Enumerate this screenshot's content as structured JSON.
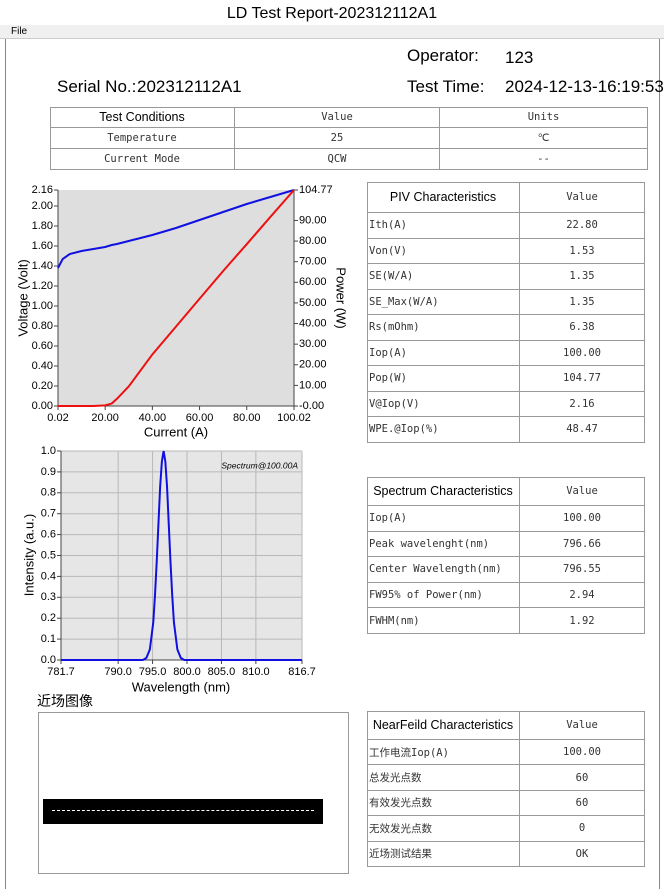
{
  "window": {
    "title": "LD Test Report-202312112A1",
    "menu": [
      "File"
    ]
  },
  "header": {
    "operator_label": "Operator:",
    "operator": "123",
    "serial_label": "Serial No.:",
    "serial": "202312112A1",
    "time_label": "Test Time:",
    "time": "2024-12-13-16:19:53"
  },
  "conditions": {
    "header": [
      "Test Conditions",
      "Value",
      "Units"
    ],
    "rows": [
      [
        "Temperature",
        "25",
        "℃"
      ],
      [
        "Current Mode",
        "QCW",
        "--"
      ]
    ]
  },
  "chart_data": [
    {
      "type": "line",
      "xlabel": "Current (A)",
      "ylabel": "Voltage (Volt)",
      "y2label": "Power (W)",
      "grid": false,
      "xlim": [
        0.02,
        100.02
      ],
      "xticks": [
        0.02,
        {
          "value": 20,
          "label": "20.00"
        },
        {
          "value": 40,
          "label": "40.00"
        },
        {
          "value": 60,
          "label": "60.00"
        },
        {
          "value": 80,
          "label": "80.00"
        },
        100.02
      ],
      "ylim": [
        0,
        2.16
      ],
      "yticks": [
        {
          "value": 0,
          "label": "0.00"
        },
        {
          "value": 0.2,
          "label": "0.20"
        },
        {
          "value": 0.4,
          "label": "0.40"
        },
        {
          "value": 0.6,
          "label": "0.60"
        },
        {
          "value": 0.8,
          "label": "0.80"
        },
        {
          "value": 1,
          "label": "1.00"
        },
        {
          "value": 1.2,
          "label": "1.20"
        },
        {
          "value": 1.4,
          "label": "1.40"
        },
        {
          "value": 1.6,
          "label": "1.60"
        },
        {
          "value": 1.8,
          "label": "1.80"
        },
        {
          "value": 2,
          "label": "2.00"
        },
        2.16
      ],
      "y2lim": [
        0,
        104.77
      ],
      "y2ticks": [
        {
          "value": 0,
          "label": "-0.00"
        },
        {
          "value": 10,
          "label": "10.00"
        },
        {
          "value": 20,
          "label": "20.00"
        },
        {
          "value": 30,
          "label": "30.00"
        },
        {
          "value": 40,
          "label": "40.00"
        },
        {
          "value": 50,
          "label": "50.00"
        },
        {
          "value": 60,
          "label": "60.00"
        },
        {
          "value": 70,
          "label": "70.00"
        },
        {
          "value": 80,
          "label": "80.00"
        },
        {
          "value": 90,
          "label": "90.00"
        },
        104.77
      ],
      "x": [
        0.02,
        2,
        5,
        10,
        15,
        20,
        22.8,
        25,
        30,
        40,
        50,
        60,
        70,
        80,
        90,
        100.02
      ],
      "series": [
        {
          "color": "#1010e0",
          "values": [
            1.38,
            1.47,
            1.52,
            1.55,
            1.57,
            1.59,
            1.61,
            1.62,
            1.65,
            1.71,
            1.78,
            1.86,
            1.94,
            2.02,
            2.09,
            2.16
          ]
        },
        {
          "color": "#ee1010",
          "axis": "y2",
          "values": [
            0,
            0,
            0,
            0,
            0,
            0.3,
            1.2,
            3.5,
            9.5,
            25,
            38.5,
            52,
            65.5,
            78.5,
            91.7,
            104.77
          ]
        }
      ]
    },
    {
      "type": "line",
      "annotation": "Spectrum@100.00A",
      "xlabel": "Wavelength (nm)",
      "ylabel": "Intensity (a.u.)",
      "grid": true,
      "xlim": [
        781.7,
        816.7
      ],
      "xticks": [
        781.7,
        {
          "value": 790,
          "label": "790.0"
        },
        {
          "value": 795,
          "label": "795.0"
        },
        {
          "value": 800,
          "label": "800.0"
        },
        {
          "value": 805,
          "label": "805.0"
        },
        {
          "value": 810,
          "label": "810.0"
        },
        816.7
      ],
      "ylim": [
        0,
        1
      ],
      "yticks": [
        {
          "value": 0,
          "label": "0.0"
        },
        0.1,
        0.2,
        0.3,
        0.4,
        0.5,
        0.6,
        0.7,
        0.8,
        0.9,
        {
          "value": 1,
          "label": "1.0"
        }
      ],
      "x": [
        781.7,
        790,
        793.6,
        794.1,
        794.6,
        795.1,
        795.35,
        795.6,
        795.85,
        796.1,
        796.35,
        796.6,
        796.85,
        797.1,
        797.35,
        797.6,
        797.85,
        798.1,
        798.6,
        799.1,
        799.6,
        805,
        816.7
      ],
      "series": [
        {
          "color": "#1010e0",
          "values": [
            0,
            0,
            0,
            0.01,
            0.05,
            0.18,
            0.31,
            0.47,
            0.65,
            0.83,
            0.95,
            1,
            0.95,
            0.83,
            0.65,
            0.47,
            0.31,
            0.18,
            0.05,
            0.01,
            0,
            0,
            0
          ]
        }
      ]
    }
  ],
  "piv_table": {
    "header": [
      "PIV Characteristics",
      "Value"
    ],
    "rows": [
      [
        "Ith(A)",
        "22.80"
      ],
      [
        "Von(V)",
        "1.53"
      ],
      [
        "SE(W/A)",
        "1.35"
      ],
      [
        "SE_Max(W/A)",
        "1.35"
      ],
      [
        "Rs(mOhm)",
        "6.38"
      ],
      [
        "Iop(A)",
        "100.00"
      ],
      [
        "Pop(W)",
        "104.77"
      ],
      [
        "V@Iop(V)",
        "2.16"
      ],
      [
        "WPE.@Iop(%)",
        "48.47"
      ]
    ]
  },
  "spectrum_table": {
    "header": [
      "Spectrum Characteristics",
      "Value"
    ],
    "rows": [
      [
        "Iop(A)",
        "100.00"
      ],
      [
        "Peak wavelenght(nm)",
        "796.66"
      ],
      [
        "Center Wavelength(nm)",
        "796.55"
      ],
      [
        "FW95% of Power(nm)",
        "2.94"
      ],
      [
        "FWHM(nm)",
        "1.92"
      ]
    ]
  },
  "nearfield": {
    "label": "近场图像",
    "table": {
      "header": [
        "NearFeild Characteristics",
        "Value"
      ],
      "rows": [
        [
          "工作电流Iop(A)",
          "100.00"
        ],
        [
          "总发光点数",
          "60"
        ],
        [
          "有效发光点数",
          "60"
        ],
        [
          "无效发光点数",
          "0"
        ],
        [
          "近场测试结果",
          "OK"
        ]
      ]
    }
  }
}
